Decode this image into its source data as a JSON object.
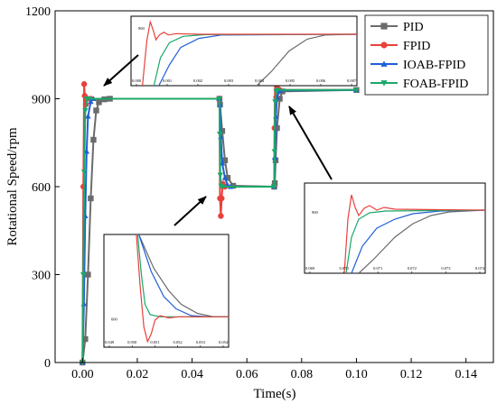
{
  "chart_data": {
    "type": "line",
    "xlabel": "Time(s)",
    "ylabel": "Rotational Speed/rpm",
    "xlim": [
      -0.01,
      0.15
    ],
    "ylim": [
      0,
      1200
    ],
    "xticks": [
      0.0,
      0.02,
      0.04,
      0.06,
      0.08,
      0.1,
      0.12,
      0.14
    ],
    "xtick_labels": [
      "0.00",
      "0.02",
      "0.04",
      "0.06",
      "0.08",
      "0.10",
      "0.12",
      "0.14"
    ],
    "yticks": [
      0,
      300,
      600,
      900,
      1200
    ],
    "ytick_labels": [
      "0",
      "300",
      "600",
      "900",
      "1200"
    ],
    "legend_position": "top-right",
    "series": [
      {
        "name": "PID",
        "color": "#6b6b6b",
        "marker": "square",
        "x": [
          0,
          0.001,
          0.002,
          0.003,
          0.004,
          0.005,
          0.006,
          0.008,
          0.01,
          0.05,
          0.0502,
          0.051,
          0.052,
          0.053,
          0.055,
          0.07,
          0.0702,
          0.0705,
          0.071,
          0.072,
          0.073,
          0.1
        ],
        "y": [
          0,
          80,
          300,
          560,
          760,
          860,
          888,
          898,
          900,
          900,
          880,
          790,
          690,
          630,
          603,
          600,
          612,
          690,
          800,
          900,
          925,
          930
        ]
      },
      {
        "name": "FPID",
        "color": "#e8413c",
        "marker": "circle",
        "x": [
          0,
          0.0003,
          0.0006,
          0.0008,
          0.0012,
          0.0018,
          0.003,
          0.05,
          0.0502,
          0.0505,
          0.0508,
          0.0512,
          0.052,
          0.07,
          0.0701,
          0.0703,
          0.0707,
          0.0712,
          0.072,
          0.1
        ],
        "y": [
          0,
          600,
          950,
          910,
          880,
          900,
          900,
          900,
          560,
          500,
          560,
          610,
          600,
          600,
          800,
          965,
          905,
          935,
          930,
          930
        ]
      },
      {
        "name": "IOAB-FPID",
        "color": "#1f5fd6",
        "marker": "triangle-up",
        "x": [
          0,
          0.0005,
          0.001,
          0.0015,
          0.002,
          0.003,
          0.004,
          0.05,
          0.0502,
          0.0505,
          0.051,
          0.052,
          0.053,
          0.054,
          0.07,
          0.0702,
          0.0706,
          0.071,
          0.072,
          0.1
        ],
        "y": [
          0,
          200,
          500,
          720,
          840,
          890,
          900,
          900,
          880,
          770,
          680,
          630,
          605,
          600,
          600,
          700,
          840,
          905,
          928,
          930
        ]
      },
      {
        "name": "FOAB-FPID",
        "color": "#1aa86a",
        "marker": "triangle-down",
        "x": [
          0,
          0.0003,
          0.0006,
          0.001,
          0.0015,
          0.0025,
          0.05,
          0.0501,
          0.0503,
          0.0506,
          0.051,
          0.07,
          0.0701,
          0.0703,
          0.0707,
          0.0712,
          0.1
        ],
        "y": [
          0,
          300,
          650,
          860,
          900,
          900,
          900,
          780,
          640,
          602,
          600,
          600,
          720,
          890,
          925,
          930,
          930
        ]
      }
    ],
    "insets": [
      {
        "location": "top-left",
        "xtick_labels": [
          "0.000",
          "0.001",
          "0.002",
          "0.003",
          "0.004",
          "0.005",
          "0.006",
          "0.007"
        ],
        "ytick_labels": [
          "900"
        ]
      },
      {
        "location": "bottom-center",
        "xtick_labels": [
          "0.049",
          "0.050",
          "0.051",
          "0.052",
          "0.053",
          "0.054"
        ],
        "ytick_labels": [
          "600"
        ]
      },
      {
        "location": "right",
        "xtick_labels": [
          "0.069",
          "0.070",
          "0.071",
          "0.072",
          "0.073",
          "0.074"
        ],
        "ytick_labels": [
          "900"
        ]
      }
    ]
  }
}
